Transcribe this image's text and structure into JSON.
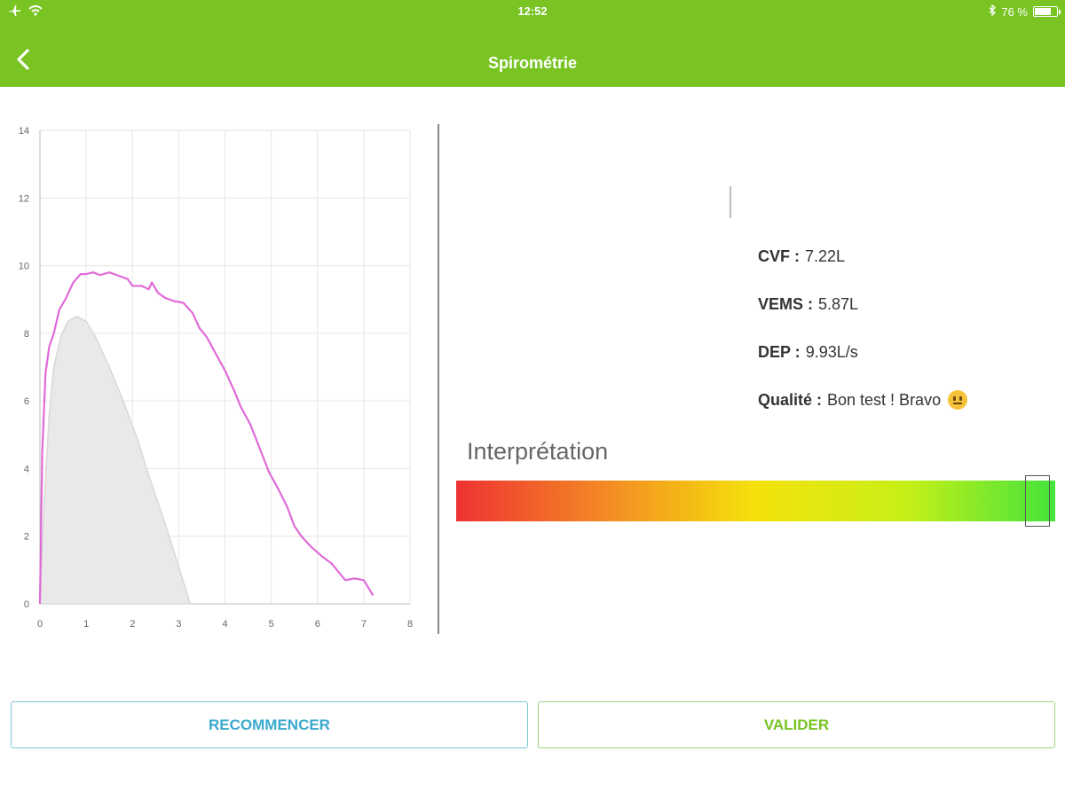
{
  "status_bar": {
    "time": "12:52",
    "battery_text": "76 %",
    "battery_level": 0.76,
    "icons": [
      "airplane-icon",
      "wifi-icon",
      "bluetooth-icon",
      "battery-icon"
    ]
  },
  "nav": {
    "title": "Spirométrie",
    "back_icon": "chevron-left-icon"
  },
  "chart_data": {
    "type": "area",
    "x_ticks": [
      "0",
      "1",
      "2",
      "3",
      "4",
      "5",
      "6",
      "7",
      "8"
    ],
    "y_ticks": [
      "0",
      "2",
      "4",
      "6",
      "8",
      "10",
      "12",
      "14"
    ],
    "xlim": [
      0,
      8
    ],
    "ylim": [
      0,
      14
    ],
    "grid": true,
    "series": [
      {
        "kind": "area",
        "color": "#d8d8d8",
        "points": [
          [
            0,
            0
          ],
          [
            0.1,
            3.2
          ],
          [
            0.2,
            5.6
          ],
          [
            0.3,
            7.0
          ],
          [
            0.45,
            7.9
          ],
          [
            0.6,
            8.35
          ],
          [
            0.8,
            8.5
          ],
          [
            1.0,
            8.35
          ],
          [
            1.2,
            7.9
          ],
          [
            1.5,
            7.0
          ],
          [
            1.8,
            6.0
          ],
          [
            2.1,
            4.9
          ],
          [
            2.4,
            3.6
          ],
          [
            2.7,
            2.4
          ],
          [
            3.0,
            1.1
          ],
          [
            3.25,
            0
          ]
        ]
      },
      {
        "kind": "line",
        "color": "#e06ad8",
        "points": [
          [
            0,
            0
          ],
          [
            0.05,
            4.5
          ],
          [
            0.12,
            6.8
          ],
          [
            0.2,
            7.6
          ],
          [
            0.3,
            8.0
          ],
          [
            0.42,
            8.7
          ],
          [
            0.55,
            9.0
          ],
          [
            0.72,
            9.5
          ],
          [
            0.88,
            9.75
          ],
          [
            1.0,
            9.75
          ],
          [
            1.15,
            9.8
          ],
          [
            1.3,
            9.72
          ],
          [
            1.5,
            9.8
          ],
          [
            1.7,
            9.7
          ],
          [
            1.9,
            9.6
          ],
          [
            2.0,
            9.4
          ],
          [
            2.2,
            9.4
          ],
          [
            2.35,
            9.3
          ],
          [
            2.42,
            9.5
          ],
          [
            2.55,
            9.2
          ],
          [
            2.7,
            9.05
          ],
          [
            2.9,
            8.95
          ],
          [
            3.1,
            8.9
          ],
          [
            3.3,
            8.6
          ],
          [
            3.45,
            8.15
          ],
          [
            3.6,
            7.9
          ],
          [
            3.8,
            7.4
          ],
          [
            4.0,
            6.9
          ],
          [
            4.2,
            6.3
          ],
          [
            4.35,
            5.8
          ],
          [
            4.55,
            5.3
          ],
          [
            4.75,
            4.6
          ],
          [
            4.95,
            3.9
          ],
          [
            5.15,
            3.4
          ],
          [
            5.35,
            2.85
          ],
          [
            5.5,
            2.3
          ],
          [
            5.65,
            2.0
          ],
          [
            5.85,
            1.7
          ],
          [
            6.1,
            1.4
          ],
          [
            6.3,
            1.2
          ],
          [
            6.45,
            0.95
          ],
          [
            6.6,
            0.7
          ],
          [
            6.8,
            0.75
          ],
          [
            7.0,
            0.7
          ],
          [
            7.2,
            0.25
          ]
        ]
      }
    ]
  },
  "results": {
    "cvf_label": "CVF :",
    "cvf_value": "7.22L",
    "vems_label": "VEMS :",
    "vems_value": "5.87L",
    "dep_label": "DEP :",
    "dep_value": "9.93L/s",
    "quality_label": "Qualité :",
    "quality_value": "Bon test ! Bravo",
    "quality_icon": "smiley-icon"
  },
  "interpretation": {
    "title": "Interprétation",
    "level": 0.97,
    "gradient_colors": [
      "#ee3232",
      "#f48a24",
      "#f5e20b",
      "#c7ef17",
      "#44e43c"
    ]
  },
  "buttons": {
    "restart": "RECOMMENCER",
    "validate": "VALIDER"
  },
  "colors": {
    "brand": "#79c423",
    "restart_accent": "#3aa9cc"
  }
}
